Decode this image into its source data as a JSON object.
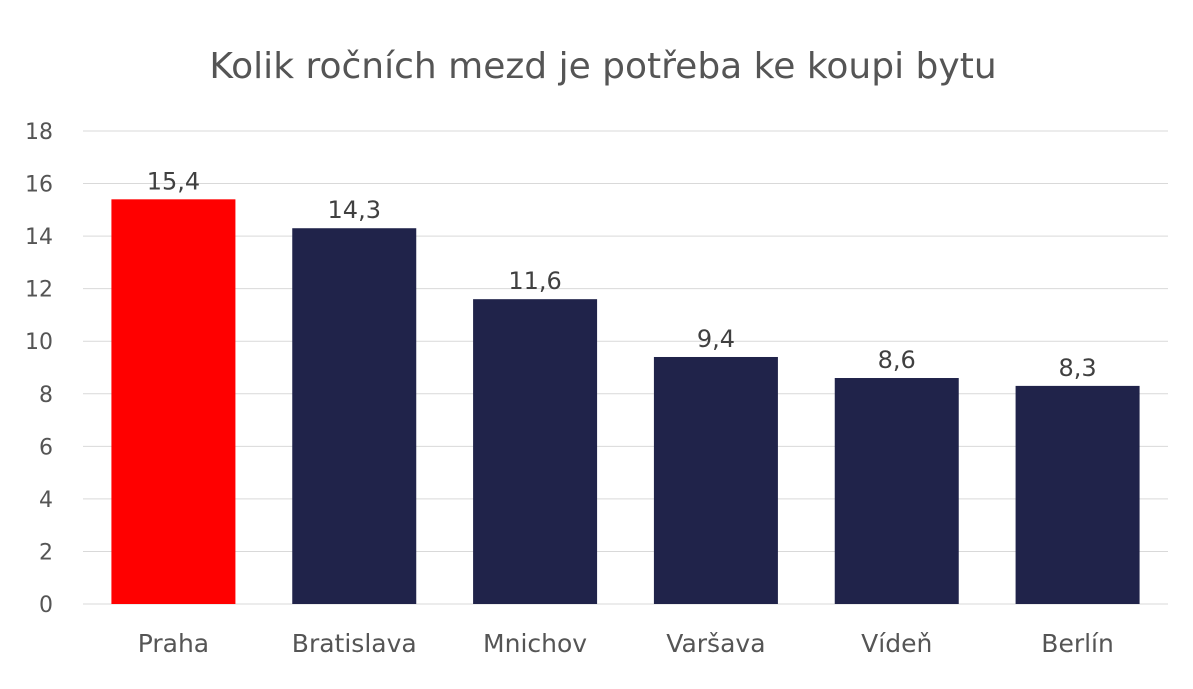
{
  "chart_data": {
    "type": "bar",
    "title": "Kolik ročních mezd je potřeba ke koupi bytu",
    "xlabel": "",
    "ylabel": "",
    "categories": [
      "Praha",
      "Bratislava",
      "Mnichov",
      "Varšava",
      "Vídeň",
      "Berlín"
    ],
    "values": [
      15.4,
      14.3,
      11.6,
      9.4,
      8.6,
      8.3
    ],
    "value_labels": [
      "15,4",
      "14,3",
      "11,6",
      "9,4",
      "8,6",
      "8,3"
    ],
    "ylim": [
      0,
      18
    ],
    "yticks": [
      0,
      2,
      4,
      6,
      8,
      10,
      12,
      14,
      16,
      18
    ],
    "grid": true,
    "legend": "none",
    "colors": {
      "highlight": "#ff0000",
      "bar": "#20234a",
      "highlight_categories": [
        "Praha"
      ]
    }
  }
}
